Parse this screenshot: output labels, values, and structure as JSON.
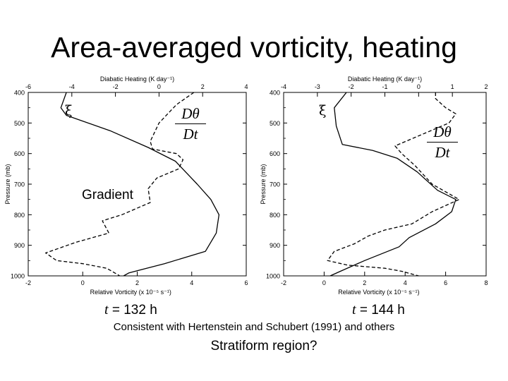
{
  "slide": {
    "title": "Area-averaged vorticity, heating",
    "gradient_label": "Gradient",
    "consistent_note": "Consistent with Hertenstein and Schubert (1991) and others",
    "question": "Stratiform region?"
  },
  "chart_data": [
    {
      "type": "line",
      "time_var": "t",
      "time_value": " = 132 h",
      "top_axis_label": "Diabatic Heating (K day⁻¹)",
      "bottom_axis_label": "Relative Vorticity (x 10⁻⁵ s⁻¹)",
      "left_axis_label": "Pressure (mb)",
      "ylim": [
        1000,
        400
      ],
      "y_ticks": [
        "400",
        "500",
        "600",
        "700",
        "800",
        "900",
        "1000"
      ],
      "xlim_bottom": [
        -2,
        6
      ],
      "x_ticks_bottom": [
        "-2",
        "0",
        "2",
        "4",
        "6"
      ],
      "xlim_top": [
        -6,
        4
      ],
      "x_ticks_top": [
        "-6",
        "-4",
        "-2",
        "0",
        "2",
        "4"
      ],
      "curve_labels": {
        "vorticity": "ξ",
        "heating_num": "Dθ",
        "heating_den": "Dt"
      },
      "series": [
        {
          "axis": "bottom",
          "style": "solid",
          "points": [
            [
              -0.6,
              400
            ],
            [
              -0.8,
              450
            ],
            [
              -0.6,
              475
            ],
            [
              1.0,
              525
            ],
            [
              2.4,
              580
            ],
            [
              3.4,
              625
            ],
            [
              4.2,
              700
            ],
            [
              4.7,
              750
            ],
            [
              5.0,
              800
            ],
            [
              4.9,
              860
            ],
            [
              4.5,
              920
            ],
            [
              3.0,
              960
            ],
            [
              1.7,
              990
            ],
            [
              1.5,
              1000
            ]
          ]
        },
        {
          "axis": "top",
          "style": "dashed",
          "points": [
            [
              1.6,
              400
            ],
            [
              0.8,
              440
            ],
            [
              0.0,
              500
            ],
            [
              -0.4,
              560
            ],
            [
              -0.3,
              585
            ],
            [
              0.8,
              600
            ],
            [
              1.1,
              620
            ],
            [
              0.9,
              650
            ],
            [
              -0.1,
              680
            ],
            [
              -0.5,
              715
            ],
            [
              -0.4,
              760
            ],
            [
              -1.7,
              800
            ],
            [
              -2.6,
              820
            ],
            [
              -2.3,
              860
            ],
            [
              -3.8,
              890
            ],
            [
              -5.2,
              925
            ],
            [
              -4.7,
              950
            ],
            [
              -3.5,
              960
            ],
            [
              -2.4,
              975
            ],
            [
              -1.8,
              1000
            ]
          ]
        }
      ]
    },
    {
      "type": "line",
      "time_var": "t",
      "time_value": " = 144 h",
      "top_axis_label": "Diabatic Heating (K day⁻¹)",
      "bottom_axis_label": "Relative Vorticity (x 10⁻⁵ s⁻¹)",
      "left_axis_label": "Pressure (mb)",
      "ylim": [
        1000,
        400
      ],
      "y_ticks": [
        "400",
        "500",
        "600",
        "700",
        "800",
        "900",
        "1000"
      ],
      "xlim_bottom": [
        -2,
        8
      ],
      "x_ticks_bottom": [
        "-2",
        "0",
        "2",
        "4",
        "6",
        "8"
      ],
      "xlim_top": [
        -4,
        2
      ],
      "x_ticks_top": [
        "-4",
        "-3",
        "-2",
        "-1",
        "0",
        "1",
        "2"
      ],
      "curve_labels": {
        "vorticity": "ξ",
        "heating_num": "Dθ",
        "heating_den": "Dt"
      },
      "series": [
        {
          "axis": "bottom",
          "style": "solid",
          "points": [
            [
              1.1,
              400
            ],
            [
              0.5,
              450
            ],
            [
              0.6,
              510
            ],
            [
              0.9,
              570
            ],
            [
              2.4,
              590
            ],
            [
              3.6,
              615
            ],
            [
              4.6,
              660
            ],
            [
              5.6,
              720
            ],
            [
              6.5,
              750
            ],
            [
              6.3,
              790
            ],
            [
              5.5,
              830
            ],
            [
              4.2,
              875
            ],
            [
              3.7,
              905
            ],
            [
              2.0,
              950
            ],
            [
              0.8,
              985
            ],
            [
              0.3,
              1000
            ]
          ]
        },
        {
          "axis": "top",
          "style": "dashed",
          "points": [
            [
              0.5,
              400
            ],
            [
              0.5,
              420
            ],
            [
              0.8,
              450
            ],
            [
              1.1,
              470
            ],
            [
              0.9,
              500
            ],
            [
              -0.7,
              575
            ],
            [
              -0.5,
              600
            ],
            [
              -0.1,
              640
            ],
            [
              0.4,
              700
            ],
            [
              1.2,
              750
            ],
            [
              0.4,
              790
            ],
            [
              -0.2,
              830
            ],
            [
              -1.0,
              850
            ],
            [
              -1.5,
              870
            ],
            [
              -1.9,
              895
            ],
            [
              -2.5,
              920
            ],
            [
              -2.7,
              950
            ],
            [
              -2.1,
              965
            ],
            [
              -1.0,
              975
            ],
            [
              -0.5,
              985
            ],
            [
              0.0,
              1000
            ]
          ]
        }
      ]
    }
  ]
}
